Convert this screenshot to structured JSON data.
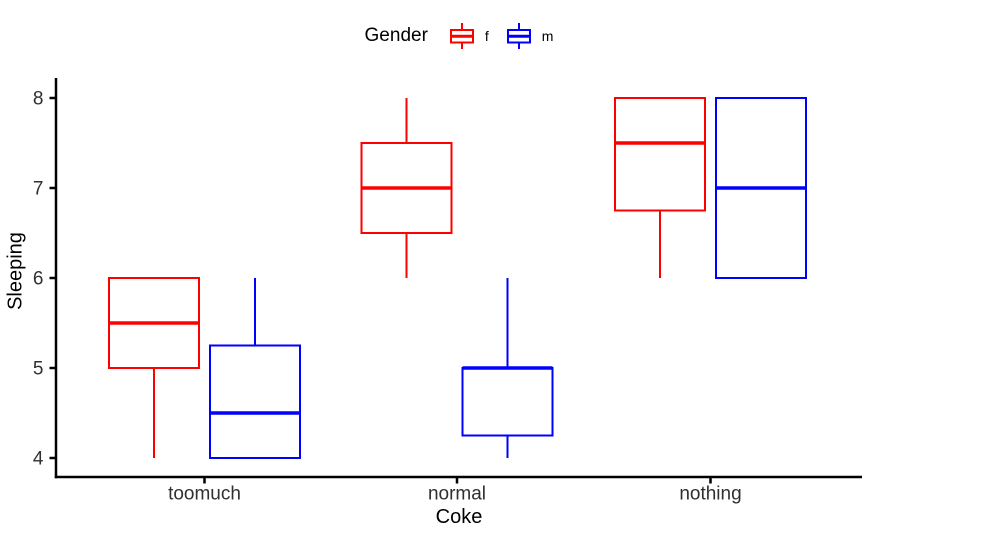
{
  "chart_data": {
    "type": "boxplot",
    "title": "",
    "xlabel": "Coke",
    "ylabel": "Sleeping",
    "categories": [
      "toomuch",
      "normal",
      "nothing"
    ],
    "y_ticks": [
      4,
      5,
      6,
      7,
      8
    ],
    "ylim": [
      3.8,
      8.2
    ],
    "grid": false,
    "background": "#FFFFFF",
    "axis_color": "#000000",
    "tick_label_color": "#303030",
    "legend": {
      "title": "Gender",
      "position": "top-center",
      "entries": [
        {
          "label": "f",
          "color": "#FF0000"
        },
        {
          "label": "m",
          "color": "#0000FF"
        }
      ]
    },
    "series": [
      {
        "name": "f",
        "color": "#FF0000",
        "boxes": [
          {
            "category": "toomuch",
            "min": 4,
            "q1": 5,
            "median": 5.5,
            "q3": 6,
            "max": 6
          },
          {
            "category": "normal",
            "min": 6,
            "q1": 6.5,
            "median": 7,
            "q3": 7.5,
            "max": 8
          },
          {
            "category": "nothing",
            "min": 6,
            "q1": 6.75,
            "median": 7.5,
            "q3": 8,
            "max": 8
          }
        ]
      },
      {
        "name": "m",
        "color": "#0000FF",
        "boxes": [
          {
            "category": "toomuch",
            "min": 4,
            "q1": 4,
            "median": 4.5,
            "q3": 5.25,
            "max": 6
          },
          {
            "category": "normal",
            "min": 4,
            "q1": 4.25,
            "median": 5,
            "q3": 5,
            "max": 6
          },
          {
            "category": "nothing",
            "min": 6,
            "q1": 6,
            "median": 7,
            "q3": 8,
            "max": 8
          }
        ]
      }
    ]
  }
}
